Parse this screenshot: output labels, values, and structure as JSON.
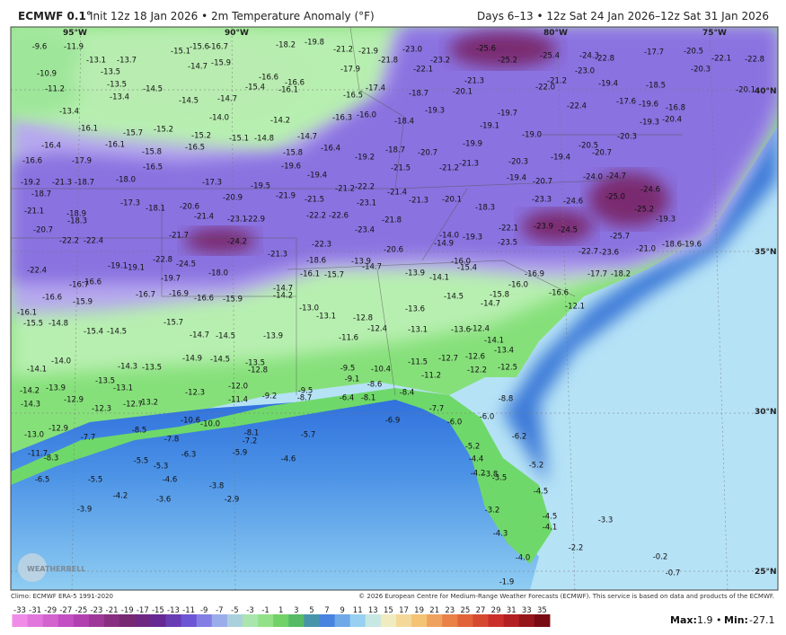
{
  "header": {
    "title": "ECMWF 0.1°",
    "subtitle": "Init 12z 18 Jan 2026 • 2m Temperature Anomaly (°F)",
    "valid": "Days 6–13 • 12z Sat 24 Jan 2026–12z Sat 31 Jan 2026"
  },
  "map": {
    "longitudes": [
      "95°W",
      "90°W",
      "80°W",
      "75°W"
    ],
    "latitudes": [
      "40°N",
      "35°N",
      "30°N",
      "25°N"
    ],
    "logo": "WEATHERBELL",
    "labels": [
      "-9.6",
      "-11.9",
      "-13.1",
      "-13.7",
      "-10.9",
      "-13.5",
      "-11.2",
      "-13.5",
      "-14.5",
      "-13.4",
      "-14.5",
      "-14.7",
      "-15.1",
      "-15.6",
      "-16.7",
      "-15.9",
      "-14.7",
      "-16.6",
      "-15.4",
      "-16.6",
      "-16.1",
      "-18.2",
      "-19.8",
      "-21.2",
      "-21.9",
      "-21.8",
      "-17.9",
      "-17.4",
      "-16.5",
      "-23.0",
      "-23.2",
      "-22.1",
      "-18.7",
      "-19.3",
      "-25.6",
      "-25.2",
      "-25.4",
      "-24.3",
      "-22.8",
      "-23.0",
      "-21.2",
      "-22.0",
      "-19.4",
      "-18.5",
      "-17.7",
      "-20.5",
      "-20.3",
      "-22.1",
      "-22.8",
      "-20.1",
      "-21.3",
      "-20.1",
      "-13.4",
      "-16.1",
      "-15.7",
      "-15.2",
      "-16.1",
      "-15.8",
      "-16.5",
      "-15.2",
      "-14.0",
      "-15.1",
      "-14.8",
      "-14.2",
      "-14.7",
      "-16.3",
      "-16.0",
      "-18.4",
      "-16.4",
      "-15.8",
      "-16.4",
      "-16.6",
      "-17.9",
      "-18.0",
      "-16.5",
      "-18.7",
      "-19.2",
      "-21.3",
      "-17.3",
      "-19.5",
      "-19.6",
      "-19.4",
      "-19.2",
      "-18.7",
      "-21.5",
      "-20.7",
      "-21.2",
      "-21.3",
      "-19.9",
      "-19.1",
      "-19.7",
      "-19.0",
      "-20.3",
      "-19.4",
      "-20.7",
      "-19.4",
      "-20.5",
      "-20.7",
      "-20.3",
      "-19.3",
      "-22.4",
      "-17.6",
      "-19.6",
      "-16.8",
      "-20.4",
      "-24.0",
      "-24.7",
      "-24.6",
      "-25.0",
      "-24.6",
      "-25.2",
      "-19.3",
      "-19.6",
      "-18.7",
      "-21.1",
      "-18.9",
      "-18.3",
      "-17.3",
      "-18.1",
      "-20.6",
      "-21.4",
      "-20.9",
      "-23.1",
      "-22.9",
      "-21.9",
      "-21.5",
      "-21.2",
      "-22.2",
      "-21.4",
      "-22.2",
      "-22.6",
      "-23.1",
      "-21.8",
      "-21.3",
      "-20.1",
      "-18.3",
      "-22.1",
      "-23.9",
      "-24.5",
      "-23.3",
      "-23.5",
      "-25.7",
      "-22.7",
      "-23.6",
      "-21.0",
      "-18.6",
      "-20.7",
      "-22.2",
      "-22.4",
      "-21.7",
      "-24.2",
      "-21.3",
      "-22.3",
      "-23.4",
      "-20.6",
      "-14.9",
      "-14.0",
      "-19.3",
      "-22.4",
      "-19.1",
      "-19.1",
      "-22.8",
      "-24.5",
      "-19.7",
      "-18.0",
      "-18.6",
      "-16.1",
      "-15.7",
      "-13.9",
      "-14.7",
      "-13.9",
      "-14.1",
      "-16.0",
      "-15.4",
      "-16.9",
      "-16.0",
      "-15.8",
      "-14.5",
      "-14.7",
      "-16.6",
      "-12.1",
      "-17.7",
      "-18.2",
      "-16.7",
      "-16.6",
      "-16.6",
      "-15.9",
      "-16.7",
      "-16.9",
      "-16.6",
      "-15.9",
      "-14.7",
      "-14.2",
      "-13.0",
      "-13.1",
      "-12.8",
      "-12.4",
      "-13.6",
      "-13.1",
      "-13.6",
      "-12.4",
      "-14.1",
      "-13.4",
      "-16.1",
      "-15.5",
      "-14.8",
      "-15.4",
      "-14.5",
      "-15.7",
      "-14.7",
      "-14.5",
      "-13.9",
      "-11.6",
      "-14.0",
      "-14.1",
      "-14.3",
      "-13.5",
      "-13.5",
      "-14.9",
      "-14.5",
      "-13.5",
      "-12.8",
      "-11.5",
      "-12.7",
      "-12.6",
      "-12.2",
      "-11.2",
      "-9.5",
      "-10.4",
      "-9.1",
      "-12.5",
      "-14.2",
      "-13.9",
      "-13.1",
      "-12.3",
      "-12.0",
      "-14.3",
      "-12.9",
      "-12.3",
      "-12.7",
      "-13.2",
      "-11.4",
      "-9.2",
      "-9.5",
      "-8.7",
      "-6.4",
      "-8.1",
      "-8.6",
      "-8.4",
      "-7.7",
      "-8.8",
      "-13.0",
      "-12.9",
      "-11.7",
      "-7.7",
      "-8.5",
      "-7.8",
      "-10.6",
      "-10.0",
      "-8.1",
      "-7.2",
      "-5.7",
      "-6.9",
      "-6.0",
      "-6.0",
      "-6.2",
      "-5.9",
      "-6.3",
      "-4.6",
      "-5.5",
      "-5.3",
      "-8.3",
      "-6.5",
      "-5.5",
      "-4.6",
      "-3.8",
      "-4.2",
      "-3.6",
      "-2.9",
      "-3.9",
      "-5.2",
      "-4.4",
      "-4.2",
      "-5.2",
      "-3.8",
      "-3.5",
      "-4.5",
      "-3.2",
      "-4.3",
      "-4.5",
      "-4.1",
      "-4.0",
      "-1.9",
      "-2.2",
      "-3.3",
      "-0.2",
      "-0.7"
    ]
  },
  "footer": {
    "climo": "Climo: ECMWF ERA-5 1991-2020",
    "credit": "© 2026 European Centre for Medium-Range Weather Forecasts (ECMWF). This service is based on data and products of the ECMWF.",
    "colorbar_ticks": [
      -33,
      -31,
      -29,
      -27,
      -25,
      -23,
      -21,
      -19,
      -17,
      -15,
      -13,
      -11,
      -9,
      -7,
      -5,
      -3,
      -1,
      1,
      3,
      5,
      7,
      9,
      11,
      13,
      15,
      17,
      19,
      21,
      23,
      25,
      27,
      29,
      31,
      33,
      35
    ],
    "max_label": "Max:",
    "max": 1.9,
    "separator": "•",
    "min_label": "Min:",
    "min": -27.1
  }
}
